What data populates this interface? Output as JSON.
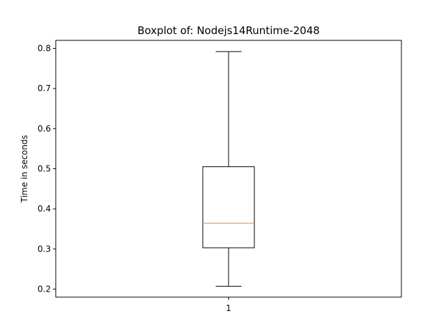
{
  "chart_data": {
    "type": "boxplot",
    "title": "Boxplot of: Nodejs14Runtime-2048",
    "xlabel": "",
    "ylabel": "Time in seconds",
    "categories": [
      "1"
    ],
    "boxes": [
      {
        "category": "1",
        "whisker_low": 0.207,
        "q1": 0.303,
        "median": 0.364,
        "q3": 0.505,
        "whisker_high": 0.792
      }
    ],
    "ylim": [
      0.18,
      0.82
    ],
    "yticks": [
      0.2,
      0.3,
      0.4,
      0.5,
      0.6,
      0.7,
      0.8
    ],
    "ytick_labels": [
      "0.2",
      "0.3",
      "0.4",
      "0.5",
      "0.6",
      "0.7",
      "0.8"
    ],
    "grid": false,
    "colors": {
      "box": "#000000",
      "median": "#ff7f0e",
      "whisker": "#000000"
    }
  }
}
